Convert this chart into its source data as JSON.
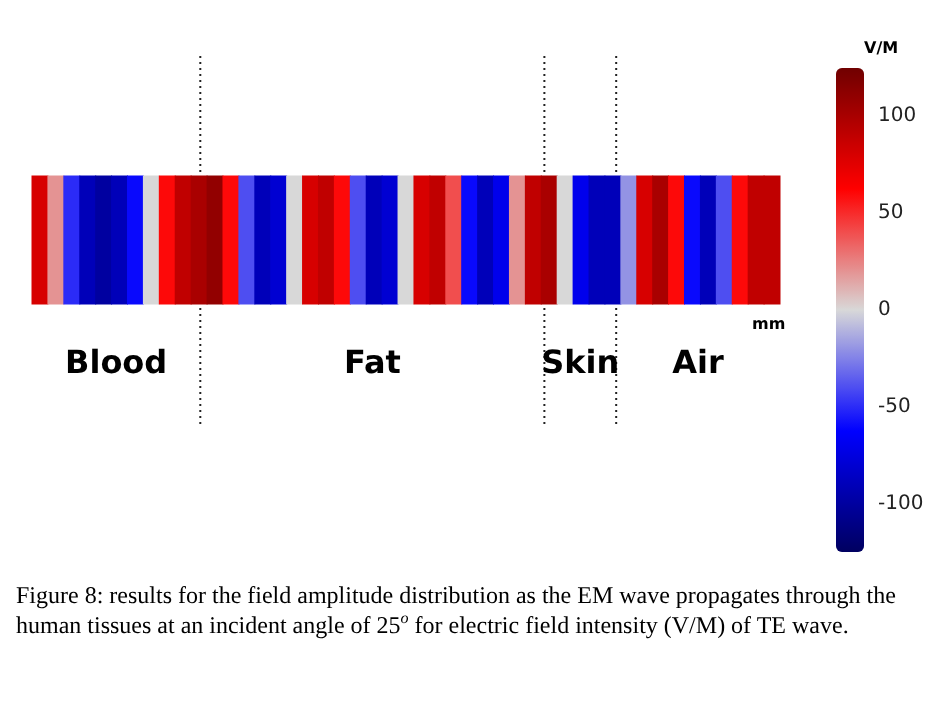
{
  "chart_data": {
    "type": "heatmap",
    "categories": [
      null,
      null,
      null,
      null,
      null,
      null,
      null,
      null,
      null,
      null,
      null,
      null,
      null,
      null,
      null,
      null,
      null,
      null,
      null,
      null,
      null,
      null,
      null,
      null,
      null,
      null,
      null,
      null,
      null,
      null,
      null,
      null,
      null,
      null,
      null,
      null,
      null,
      null,
      null,
      null,
      null,
      null,
      null,
      null,
      null,
      null,
      null
    ],
    "y_categories": [
      null
    ],
    "cells": [
      [
        80,
        20,
        -50,
        -90,
        -100,
        -90,
        -60,
        0,
        60,
        90,
        100,
        110,
        60,
        -40,
        -90,
        -80,
        0,
        80,
        90,
        60,
        -40,
        -90,
        -80,
        0,
        80,
        90,
        40,
        -60,
        -90,
        -70,
        20,
        90,
        100,
        0,
        -70,
        -90,
        -90,
        -20,
        80,
        100,
        60,
        -60,
        -90,
        -40,
        60,
        90,
        90
      ]
    ],
    "clim": [
      -125,
      125
    ],
    "cticks": [
      -100,
      -50,
      0,
      50,
      100
    ],
    "clabel": "V/M",
    "xlabel": "mm",
    "annotations": [
      "Blood",
      "Fat",
      "Skin",
      "Air",
      "Figure 8: results for the field amplitude distribution as the EM wave propagates through the human tissues at an incident angle of 25$^{o}$ for electric field intensity (V/M) of TE wave."
    ]
  }
}
